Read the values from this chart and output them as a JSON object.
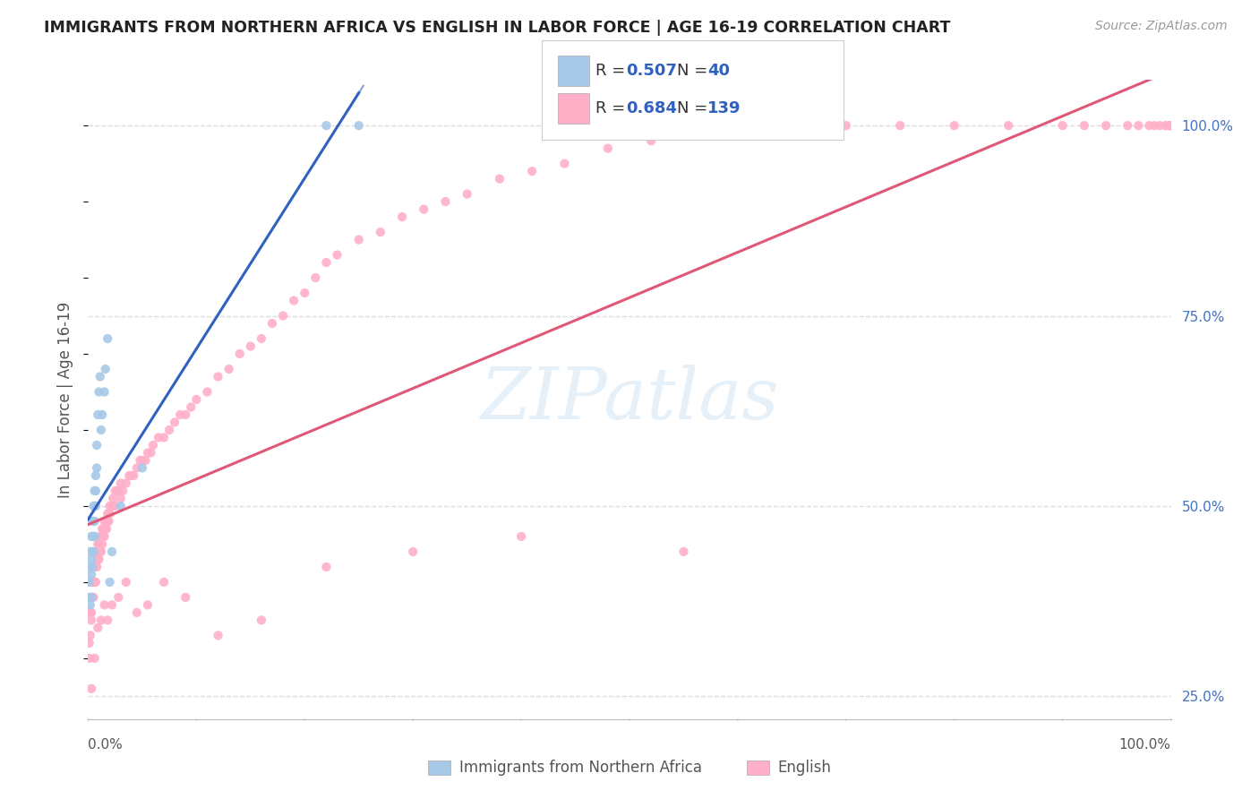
{
  "title": "IMMIGRANTS FROM NORTHERN AFRICA VS ENGLISH IN LABOR FORCE | AGE 16-19 CORRELATION CHART",
  "source": "Source: ZipAtlas.com",
  "ylabel": "In Labor Force | Age 16-19",
  "right_yticks": [
    0.25,
    0.5,
    0.75,
    1.0
  ],
  "right_yticklabels": [
    "25.0%",
    "50.0%",
    "75.0%",
    "100.0%"
  ],
  "right_ytick_color": "#4472c4",
  "blue_R": 0.507,
  "blue_N": 40,
  "pink_R": 0.684,
  "pink_N": 139,
  "blue_color": "#a8c8e8",
  "blue_line_color": "#3060c0",
  "pink_color": "#ffb0c8",
  "pink_line_color": "#e05878",
  "legend_label_blue": "Immigrants from Northern Africa",
  "legend_label_pink": "English",
  "blue_scatter_x": [
    0.001,
    0.001,
    0.002,
    0.002,
    0.002,
    0.003,
    0.003,
    0.003,
    0.003,
    0.004,
    0.004,
    0.004,
    0.004,
    0.005,
    0.005,
    0.005,
    0.005,
    0.006,
    0.006,
    0.006,
    0.006,
    0.007,
    0.007,
    0.007,
    0.008,
    0.008,
    0.009,
    0.01,
    0.011,
    0.012,
    0.013,
    0.015,
    0.016,
    0.018,
    0.02,
    0.022,
    0.03,
    0.05,
    0.22,
    0.25
  ],
  "blue_scatter_y": [
    0.38,
    0.4,
    0.37,
    0.42,
    0.44,
    0.38,
    0.41,
    0.43,
    0.46,
    0.42,
    0.44,
    0.46,
    0.48,
    0.44,
    0.46,
    0.48,
    0.5,
    0.46,
    0.48,
    0.5,
    0.52,
    0.5,
    0.52,
    0.54,
    0.55,
    0.58,
    0.62,
    0.65,
    0.67,
    0.6,
    0.62,
    0.65,
    0.68,
    0.72,
    0.4,
    0.44,
    0.5,
    0.55,
    1.0,
    1.0
  ],
  "pink_scatter_x": [
    0.001,
    0.001,
    0.002,
    0.002,
    0.003,
    0.003,
    0.003,
    0.004,
    0.004,
    0.005,
    0.005,
    0.005,
    0.006,
    0.006,
    0.007,
    0.007,
    0.008,
    0.008,
    0.009,
    0.009,
    0.01,
    0.01,
    0.011,
    0.011,
    0.012,
    0.012,
    0.013,
    0.013,
    0.014,
    0.014,
    0.015,
    0.015,
    0.016,
    0.016,
    0.017,
    0.018,
    0.018,
    0.019,
    0.02,
    0.02,
    0.022,
    0.023,
    0.025,
    0.025,
    0.027,
    0.028,
    0.03,
    0.03,
    0.032,
    0.035,
    0.038,
    0.04,
    0.042,
    0.045,
    0.048,
    0.05,
    0.053,
    0.055,
    0.058,
    0.06,
    0.065,
    0.07,
    0.075,
    0.08,
    0.085,
    0.09,
    0.095,
    0.1,
    0.11,
    0.12,
    0.13,
    0.14,
    0.15,
    0.16,
    0.17,
    0.18,
    0.19,
    0.2,
    0.21,
    0.22,
    0.23,
    0.25,
    0.27,
    0.29,
    0.31,
    0.33,
    0.35,
    0.38,
    0.41,
    0.44,
    0.48,
    0.52,
    0.56,
    0.61,
    0.65,
    0.7,
    0.75,
    0.8,
    0.85,
    0.9,
    0.92,
    0.94,
    0.96,
    0.97,
    0.98,
    0.985,
    0.99,
    0.995,
    0.998,
    1.0,
    1.0,
    1.0,
    1.0,
    1.0,
    1.0,
    1.0,
    1.0,
    1.0,
    1.0,
    1.0,
    0.003,
    0.006,
    0.009,
    0.012,
    0.015,
    0.018,
    0.022,
    0.028,
    0.035,
    0.045,
    0.055,
    0.07,
    0.09,
    0.12,
    0.16,
    0.22,
    0.3,
    0.4,
    0.55
  ],
  "pink_scatter_y": [
    0.3,
    0.32,
    0.33,
    0.36,
    0.35,
    0.38,
    0.36,
    0.38,
    0.4,
    0.38,
    0.4,
    0.42,
    0.4,
    0.42,
    0.4,
    0.42,
    0.42,
    0.44,
    0.43,
    0.45,
    0.43,
    0.45,
    0.44,
    0.46,
    0.44,
    0.46,
    0.45,
    0.47,
    0.46,
    0.47,
    0.46,
    0.48,
    0.47,
    0.48,
    0.47,
    0.48,
    0.49,
    0.48,
    0.49,
    0.5,
    0.5,
    0.51,
    0.5,
    0.52,
    0.52,
    0.52,
    0.51,
    0.53,
    0.52,
    0.53,
    0.54,
    0.54,
    0.54,
    0.55,
    0.56,
    0.56,
    0.56,
    0.57,
    0.57,
    0.58,
    0.59,
    0.59,
    0.6,
    0.61,
    0.62,
    0.62,
    0.63,
    0.64,
    0.65,
    0.67,
    0.68,
    0.7,
    0.71,
    0.72,
    0.74,
    0.75,
    0.77,
    0.78,
    0.8,
    0.82,
    0.83,
    0.85,
    0.86,
    0.88,
    0.89,
    0.9,
    0.91,
    0.93,
    0.94,
    0.95,
    0.97,
    0.98,
    0.99,
    1.0,
    1.0,
    1.0,
    1.0,
    1.0,
    1.0,
    1.0,
    1.0,
    1.0,
    1.0,
    1.0,
    1.0,
    1.0,
    1.0,
    1.0,
    1.0,
    1.0,
    1.0,
    1.0,
    1.0,
    1.0,
    1.0,
    1.0,
    1.0,
    1.0,
    1.0,
    1.0,
    0.26,
    0.3,
    0.34,
    0.35,
    0.37,
    0.35,
    0.37,
    0.38,
    0.4,
    0.36,
    0.37,
    0.4,
    0.38,
    0.33,
    0.35,
    0.42,
    0.44,
    0.46,
    0.44
  ],
  "background_color": "#ffffff",
  "grid_color": "#dddddd",
  "xlim": [
    0.0,
    1.0
  ],
  "ylim": [
    0.22,
    1.06
  ]
}
